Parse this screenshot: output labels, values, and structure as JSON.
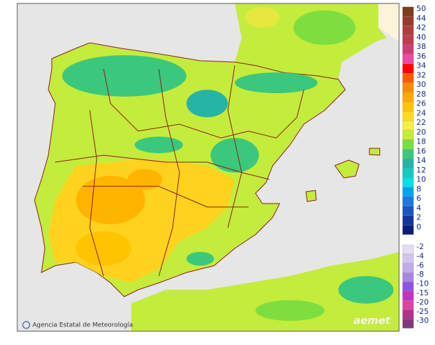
{
  "footer": {
    "credit": "Agencia Estatal de Meteorología",
    "logo": "aemet"
  },
  "legend": {
    "positive": [
      {
        "label": "50",
        "color": "#7f3b1c"
      },
      {
        "label": "44",
        "color": "#9a3a2c"
      },
      {
        "label": "42",
        "color": "#b03c3c"
      },
      {
        "label": "40",
        "color": "#c23a4e"
      },
      {
        "label": "38",
        "color": "#d03c72"
      },
      {
        "label": "36",
        "color": "#ec4aa4"
      },
      {
        "label": "34",
        "color": "#ff0000"
      },
      {
        "label": "32",
        "color": "#ff5a00"
      },
      {
        "label": "30",
        "color": "#ff8a00"
      },
      {
        "label": "28",
        "color": "#ffa800"
      },
      {
        "label": "26",
        "color": "#ffc400"
      },
      {
        "label": "24",
        "color": "#ffdc1e"
      },
      {
        "label": "22",
        "color": "#f4f040"
      },
      {
        "label": "20",
        "color": "#c4ec3c"
      },
      {
        "label": "18",
        "color": "#7ede40"
      },
      {
        "label": "16",
        "color": "#3cc87c"
      },
      {
        "label": "14",
        "color": "#26b4a4"
      },
      {
        "label": "12",
        "color": "#18c8c4"
      },
      {
        "label": "10",
        "color": "#00e2e6"
      },
      {
        "label": "8",
        "color": "#00a4f4"
      },
      {
        "label": "6",
        "color": "#1a78e0"
      },
      {
        "label": "4",
        "color": "#1c54c4"
      },
      {
        "label": "2",
        "color": "#1434a0"
      },
      {
        "label": "0",
        "color": "#0c1e78"
      }
    ],
    "negative": [
      {
        "label": "-2",
        "color": "#e4dcf2"
      },
      {
        "label": "-4",
        "color": "#d2c4ee"
      },
      {
        "label": "-6",
        "color": "#c0aaea"
      },
      {
        "label": "-8",
        "color": "#a884e2"
      },
      {
        "label": "-10",
        "color": "#9052e2"
      },
      {
        "label": "-15",
        "color": "#c232c4"
      },
      {
        "label": "-20",
        "color": "#e042a2"
      },
      {
        "label": "-25",
        "color": "#b2328c"
      },
      {
        "label": "-30",
        "color": "#82367e"
      }
    ]
  }
}
